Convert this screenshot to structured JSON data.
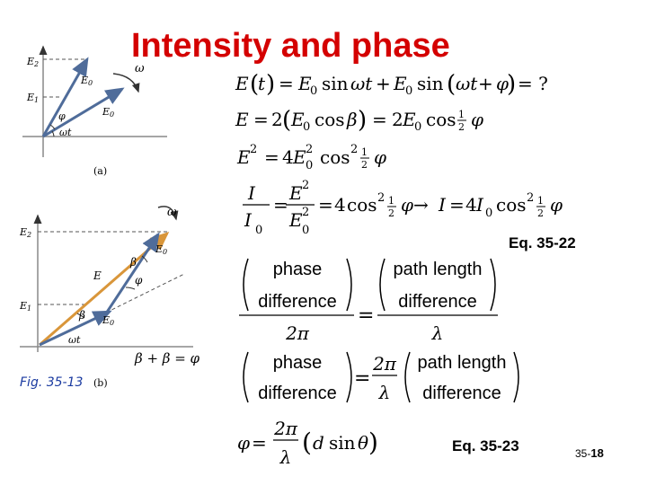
{
  "slide": {
    "title": "Intensity and phase",
    "eq_label_1": "Eq. 35-22",
    "eq_label_2": "Eq. 35-23",
    "fig_label": "Fig. 35-13",
    "page_prefix": "35-",
    "page_number": "18"
  },
  "diagram_a": {
    "caption": "(a)",
    "labels": {
      "E2": "E",
      "E1": "E",
      "E0a": "E",
      "E0b": "E",
      "phi": "φ",
      "wt": "ωt",
      "omega": "ω"
    }
  },
  "diagram_b": {
    "caption": "(b)",
    "beta_eq": "β + β = φ",
    "labels": {
      "E2": "E",
      "E1": "E",
      "E": "E",
      "E0a": "E",
      "E0b": "E",
      "beta1": "β",
      "beta2": "β",
      "phi": "φ",
      "wt": "ωt",
      "omega": "ω"
    }
  },
  "equations": {
    "phase": "phase",
    "difference": "difference",
    "path_length": "path length",
    "two_pi": "2π",
    "lambda": "λ"
  },
  "colors": {
    "title": "#d40000",
    "vector": "#4f6c9a",
    "resultant": "#d9963a"
  }
}
